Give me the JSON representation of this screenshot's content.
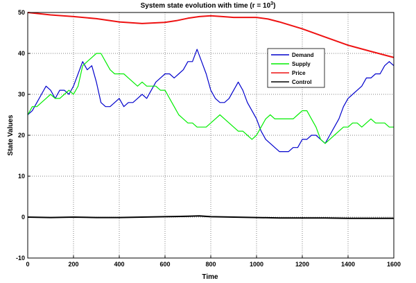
{
  "chart_data": {
    "type": "line",
    "title": "System state evolution with time (r = 10",
    "title_superscript": "3",
    "title_suffix": ")",
    "xlabel": "Time",
    "ylabel": "State Values",
    "xlim": [
      0,
      1600
    ],
    "ylim": [
      -10,
      50
    ],
    "xticks": [
      "0",
      "200",
      "400",
      "600",
      "800",
      "1000",
      "1200",
      "1400",
      "1600"
    ],
    "yticks": [
      "-10",
      "0",
      "10",
      "20",
      "30",
      "40",
      "50"
    ],
    "grid": true,
    "legend_placement": "upper-right",
    "series": [
      {
        "name": "Demand",
        "color": "#0000cc",
        "x": [
          0,
          20,
          40,
          60,
          80,
          100,
          120,
          140,
          160,
          180,
          200,
          220,
          240,
          260,
          280,
          300,
          320,
          340,
          360,
          380,
          400,
          420,
          440,
          460,
          480,
          500,
          520,
          540,
          560,
          580,
          600,
          620,
          640,
          660,
          680,
          700,
          720,
          740,
          760,
          780,
          800,
          820,
          840,
          860,
          880,
          900,
          920,
          940,
          960,
          980,
          1000,
          1020,
          1040,
          1060,
          1080,
          1100,
          1120,
          1140,
          1160,
          1180,
          1200,
          1220,
          1240,
          1260,
          1280,
          1300,
          1320,
          1340,
          1360,
          1380,
          1400,
          1420,
          1440,
          1460,
          1480,
          1500,
          1520,
          1540,
          1560,
          1580,
          1600
        ],
        "y": [
          25,
          26,
          28,
          30,
          32,
          31,
          29,
          31,
          31,
          30,
          32,
          35,
          38,
          36,
          37,
          33,
          28,
          27,
          27,
          28,
          29,
          27,
          28,
          28,
          29,
          30,
          29,
          31,
          33,
          34,
          35,
          35,
          34,
          35,
          36,
          38,
          38,
          41,
          38,
          35,
          31,
          29,
          28,
          28,
          29,
          31,
          33,
          31,
          28,
          26,
          24,
          21,
          19,
          18,
          17,
          16,
          16,
          16,
          17,
          17,
          19,
          19,
          20,
          20,
          19,
          18,
          20,
          22,
          24,
          27,
          29,
          30,
          31,
          32,
          34,
          34,
          35,
          35,
          37,
          38,
          37
        ]
      },
      {
        "name": "Supply",
        "color": "#00ee00",
        "x": [
          0,
          20,
          40,
          60,
          80,
          100,
          120,
          140,
          160,
          180,
          200,
          220,
          240,
          260,
          280,
          300,
          320,
          340,
          360,
          380,
          400,
          420,
          440,
          460,
          480,
          500,
          520,
          540,
          560,
          580,
          600,
          620,
          640,
          660,
          680,
          700,
          720,
          740,
          760,
          780,
          800,
          820,
          840,
          860,
          880,
          900,
          920,
          940,
          960,
          980,
          1000,
          1020,
          1040,
          1060,
          1080,
          1100,
          1120,
          1140,
          1160,
          1180,
          1200,
          1220,
          1240,
          1260,
          1280,
          1300,
          1320,
          1340,
          1360,
          1380,
          1400,
          1420,
          1440,
          1460,
          1480,
          1500,
          1520,
          1540,
          1560,
          1580,
          1600
        ],
        "y": [
          25,
          27,
          27,
          28,
          29,
          30,
          29,
          29,
          30,
          31,
          30,
          32,
          37,
          38,
          39,
          40,
          40,
          38,
          36,
          35,
          35,
          35,
          34,
          33,
          32,
          33,
          32,
          32,
          32,
          31,
          31,
          29,
          27,
          25,
          24,
          23,
          23,
          22,
          22,
          22,
          23,
          24,
          25,
          24,
          23,
          22,
          21,
          21,
          20,
          19,
          20,
          22,
          24,
          25,
          24,
          24,
          24,
          24,
          24,
          25,
          26,
          26,
          24,
          22,
          19,
          18,
          19,
          20,
          21,
          22,
          22,
          23,
          23,
          22,
          23,
          24,
          23,
          23,
          23,
          22,
          22
        ]
      },
      {
        "name": "Price",
        "color": "#ee1111",
        "x": [
          0,
          100,
          200,
          300,
          400,
          500,
          600,
          650,
          700,
          750,
          800,
          850,
          900,
          950,
          1000,
          1050,
          1100,
          1200,
          1300,
          1400,
          1500,
          1600
        ],
        "y": [
          50,
          49.4,
          49,
          48.5,
          47.7,
          47.3,
          47.6,
          48.0,
          48.6,
          49.0,
          49.2,
          49.0,
          48.8,
          48.8,
          48.8,
          48.4,
          47.7,
          46.0,
          44.0,
          42.0,
          40.5,
          39.0
        ]
      },
      {
        "name": "Control",
        "color": "#000000",
        "x": [
          0,
          100,
          200,
          300,
          400,
          500,
          600,
          700,
          750,
          800,
          900,
          1000,
          1100,
          1200,
          1300,
          1400,
          1500,
          1600
        ],
        "y": [
          0,
          -0.1,
          0,
          -0.1,
          -0.1,
          0,
          0.1,
          0.2,
          0.3,
          0.1,
          0,
          -0.1,
          -0.2,
          -0.2,
          -0.2,
          -0.3,
          -0.3,
          -0.3
        ]
      }
    ]
  }
}
